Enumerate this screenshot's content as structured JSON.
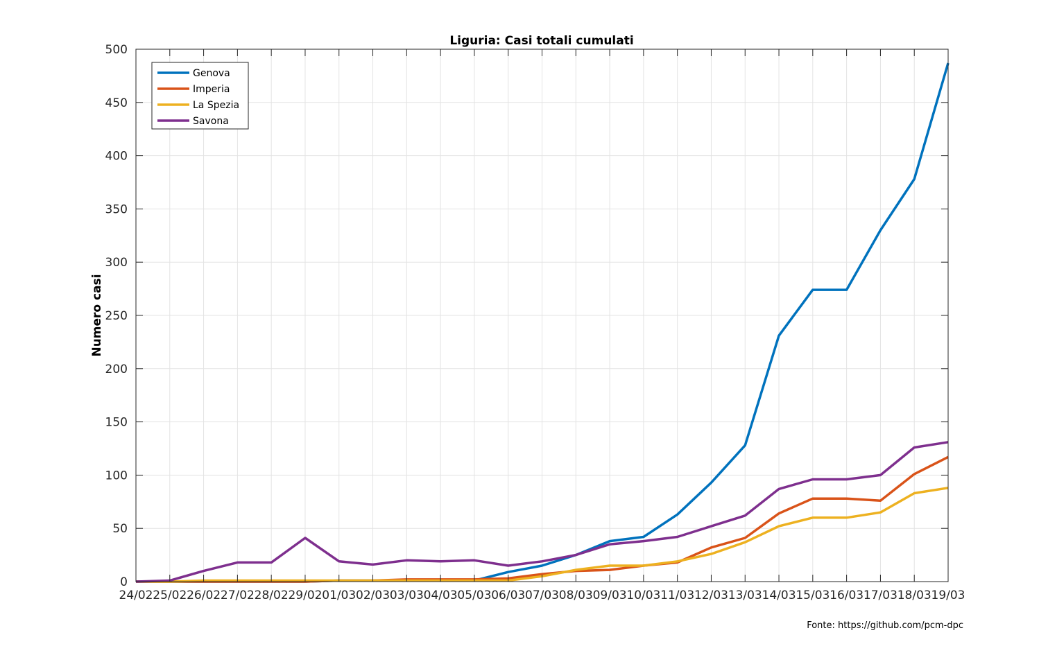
{
  "chart_data": {
    "type": "line",
    "title": "Liguria: Casi totali cumulati",
    "ylabel": "Numero casi",
    "xlabel": "",
    "source": "Fonte: https://github.com/pcm-dpc",
    "categories": [
      "24/02",
      "25/02",
      "26/02",
      "27/02",
      "28/02",
      "29/02",
      "01/03",
      "02/03",
      "03/03",
      "04/03",
      "05/03",
      "06/03",
      "07/03",
      "08/03",
      "09/03",
      "10/03",
      "11/03",
      "12/03",
      "13/03",
      "14/03",
      "15/03",
      "16/03",
      "17/03",
      "18/03",
      "19/03"
    ],
    "ylim": [
      0,
      500
    ],
    "yticks": [
      0,
      50,
      100,
      150,
      200,
      250,
      300,
      350,
      400,
      450,
      500
    ],
    "grid": true,
    "legend_position": "top-left",
    "series": [
      {
        "name": "Genova",
        "color": "#0072BD",
        "values": [
          0,
          0,
          0,
          0,
          0,
          0,
          1,
          1,
          1,
          1,
          1,
          9,
          15,
          25,
          38,
          42,
          63,
          93,
          128,
          231,
          274,
          274,
          330,
          378,
          487
        ]
      },
      {
        "name": "Imperia",
        "color": "#D95319",
        "values": [
          0,
          0,
          0,
          0,
          0,
          0,
          1,
          1,
          2,
          2,
          2,
          3,
          7,
          10,
          11,
          15,
          18,
          32,
          41,
          64,
          78,
          78,
          76,
          101,
          117
        ]
      },
      {
        "name": "La Spezia",
        "color": "#EDB120",
        "values": [
          0,
          0,
          1,
          1,
          1,
          1,
          1,
          1,
          1,
          1,
          1,
          1,
          5,
          11,
          15,
          15,
          19,
          26,
          37,
          52,
          60,
          60,
          65,
          83,
          88
        ]
      },
      {
        "name": "Savona",
        "color": "#7E2F8E",
        "values": [
          0,
          1,
          10,
          18,
          18,
          41,
          19,
          16,
          20,
          19,
          20,
          15,
          19,
          25,
          35,
          38,
          42,
          52,
          62,
          87,
          96,
          96,
          100,
          126,
          131
        ]
      }
    ]
  }
}
